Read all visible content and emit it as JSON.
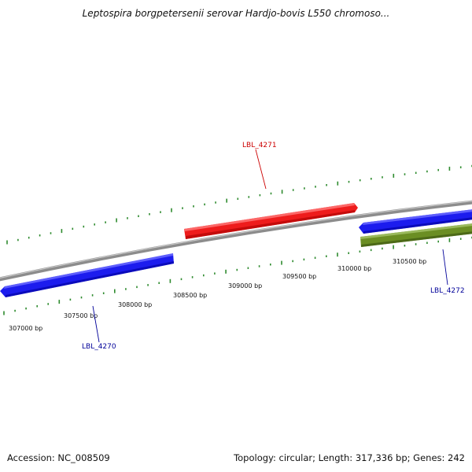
{
  "title": "Leptospira borgpetersenii serovar Hardjo-bovis L550 chromoso...",
  "footer": {
    "accession": "Accession: NC_008509",
    "topology": "Topology: circular; Length: 317,336 bp; Genes: 242"
  },
  "colors": {
    "backbone": "#8c8c8c",
    "tick": "#2e8b2e",
    "forward_gene": "#ee1c1c",
    "reverse_gene": "#1c1cee",
    "other_feature": "#6b8e23",
    "forward_label": "#cc0000",
    "reverse_label": "#000099"
  },
  "scale_labels": [
    "307000 bp",
    "307500 bp",
    "308000 bp",
    "308500 bp",
    "309000 bp",
    "309500 bp",
    "310000 bp",
    "310500 bp"
  ],
  "genes": [
    {
      "id": "LBL_4271",
      "label": "LBL_4271",
      "strand": "forward"
    },
    {
      "id": "LBL_4270",
      "label": "LBL_4270",
      "strand": "reverse"
    },
    {
      "id": "LBL_4272",
      "label": "LBL_4272",
      "strand": "reverse"
    }
  ]
}
